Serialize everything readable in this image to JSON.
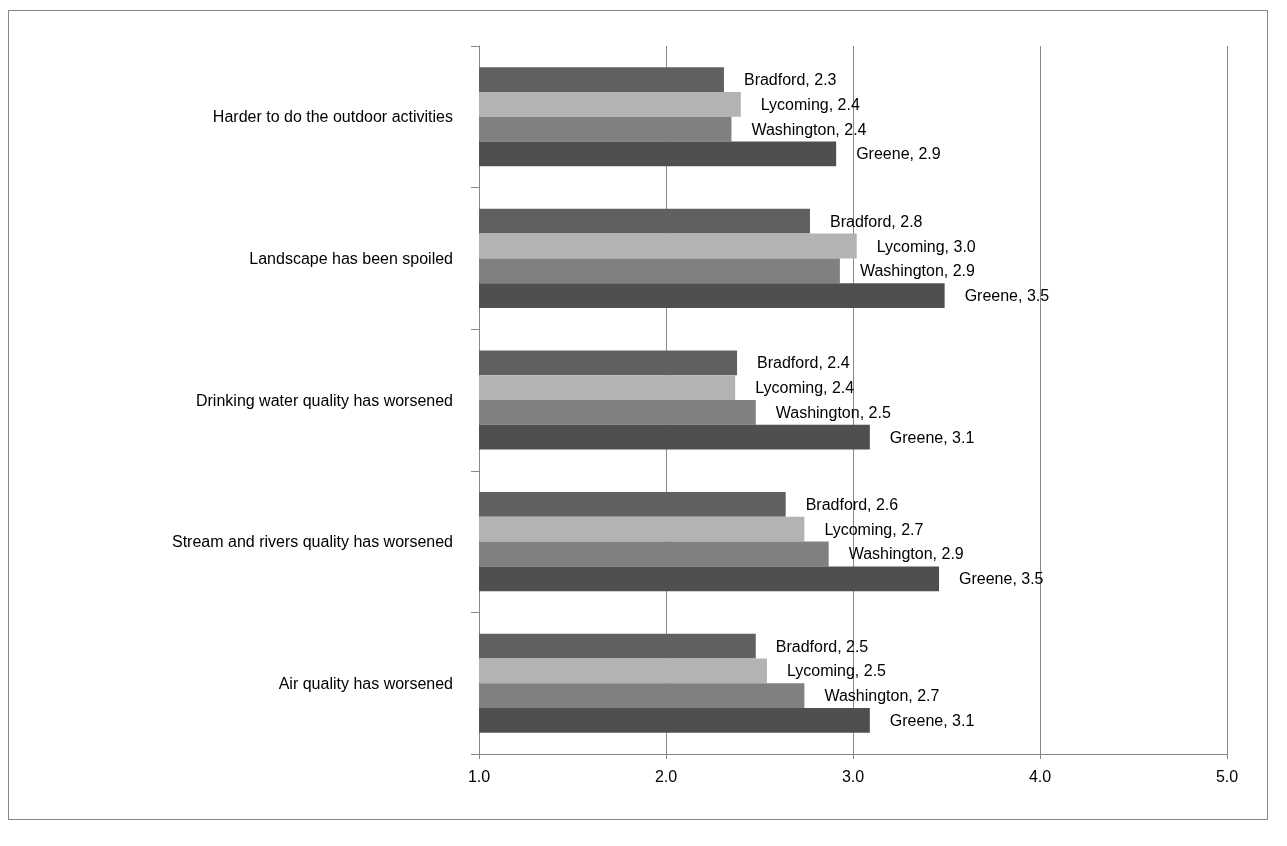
{
  "chart_data": {
    "type": "bar",
    "orientation": "horizontal",
    "categories": [
      "Harder to do the outdoor activities",
      "Landscape has been spoiled",
      "Drinking water quality has worsened",
      "Stream and rivers quality has worsened",
      "Air quality has worsened"
    ],
    "series": [
      {
        "color": "#606060",
        "values": [
          2.31,
          2.77,
          2.38,
          2.64,
          2.48
        ],
        "value_labels": [
          "Bradford, 2.3",
          "Bradford, 2.8",
          "Bradford, 2.4",
          "Bradford, 2.6",
          "Bradford, 2.5"
        ]
      },
      {
        "color": "#b3b3b3",
        "values": [
          2.4,
          3.02,
          2.37,
          2.74,
          2.54
        ],
        "value_labels": [
          "Lycoming, 2.4",
          "Lycoming, 3.0",
          "Lycoming, 2.4",
          "Lycoming, 2.7",
          "Lycoming, 2.5"
        ]
      },
      {
        "color": "#808080",
        "values": [
          2.35,
          2.93,
          2.48,
          2.87,
          2.74
        ],
        "value_labels": [
          "Washington, 2.4",
          "Washington, 2.9",
          "Washington, 2.5",
          "Washington, 2.9",
          "Washington, 2.7"
        ]
      },
      {
        "color": "#4f4f4f",
        "values": [
          2.91,
          3.49,
          3.09,
          3.46,
          3.09
        ],
        "value_labels": [
          "Greene, 2.9",
          "Greene, 3.5",
          "Greene, 3.1",
          "Greene, 3.5",
          "Greene, 3.1"
        ]
      }
    ],
    "xlim": [
      1,
      5
    ],
    "xticks": [
      {
        "value": 1,
        "label": "1.0"
      },
      {
        "value": 2,
        "label": "2.0"
      },
      {
        "value": 3,
        "label": "3.0"
      },
      {
        "value": 4,
        "label": "4.0"
      },
      {
        "value": 5,
        "label": "5.0"
      }
    ],
    "grid": "x"
  }
}
